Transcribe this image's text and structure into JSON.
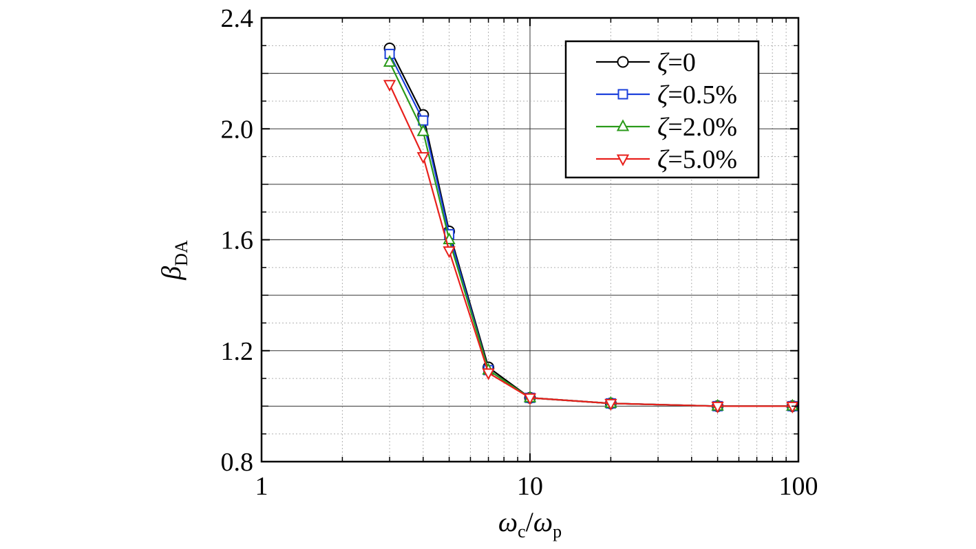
{
  "chart_data": {
    "type": "line",
    "x_scale": "log",
    "xlim": [
      1,
      100
    ],
    "ylim": [
      0.8,
      2.4
    ],
    "x_ticks": [
      1,
      10,
      100
    ],
    "x_tick_labels": [
      "1",
      "10",
      "100"
    ],
    "y_ticks": [
      0.8,
      1.2,
      1.6,
      2.0,
      2.4
    ],
    "y_tick_labels": [
      "0.8",
      "1.2",
      "1.6",
      "2.0",
      "2.4"
    ],
    "ylabel": {
      "main": "β",
      "sub": "DA"
    },
    "xlabel": {
      "num": "ω",
      "num_sub": "c",
      "sep": "/",
      "den": "ω",
      "den_sub": "p"
    },
    "grid": true,
    "legend_position": "top-right",
    "x": [
      3,
      4,
      5,
      7,
      10,
      20,
      50,
      95
    ],
    "series": [
      {
        "name": "ζ=0",
        "color": "#000000",
        "marker": "circle",
        "values": [
          2.29,
          2.05,
          1.63,
          1.14,
          1.03,
          1.01,
          1.0,
          1.0
        ]
      },
      {
        "name": "ζ=0.5%",
        "color": "#1a3fdb",
        "marker": "square",
        "values": [
          2.27,
          2.03,
          1.62,
          1.13,
          1.03,
          1.01,
          1.0,
          1.0
        ]
      },
      {
        "name": "ζ=2.0%",
        "color": "#2a9a1a",
        "marker": "triangle-up",
        "values": [
          2.24,
          1.99,
          1.6,
          1.13,
          1.03,
          1.01,
          1.0,
          1.0
        ]
      },
      {
        "name": "ζ=5.0%",
        "color": "#e8201c",
        "marker": "triangle-down",
        "values": [
          2.16,
          1.9,
          1.56,
          1.12,
          1.03,
          1.01,
          1.0,
          1.0
        ]
      }
    ]
  }
}
